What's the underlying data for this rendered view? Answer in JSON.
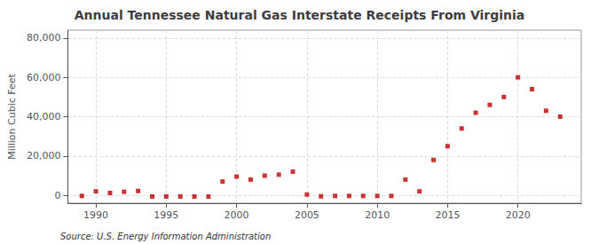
{
  "chart_data": {
    "type": "scatter",
    "title": "Annual Tennessee Natural Gas Interstate Receipts From Virginia",
    "ylabel": "Million Cubic Feet",
    "annotation": "Source: U.S. Energy Information Administration",
    "x": [
      1989,
      1990,
      1991,
      1992,
      1993,
      1994,
      1995,
      1996,
      1997,
      1998,
      1999,
      2000,
      2001,
      2002,
      2003,
      2004,
      2005,
      2006,
      2007,
      2008,
      2009,
      2010,
      2011,
      2012,
      2013,
      2014,
      2015,
      2016,
      2017,
      2018,
      2019,
      2020,
      2021,
      2022,
      2023
    ],
    "values": [
      -300,
      2000,
      1200,
      1800,
      2200,
      -600,
      -600,
      -600,
      -600,
      -600,
      7000,
      9500,
      8000,
      10000,
      10500,
      12000,
      400,
      -500,
      -300,
      -300,
      -300,
      -300,
      -300,
      8000,
      2000,
      18000,
      25000,
      34000,
      42000,
      46000,
      50000,
      60000,
      54000,
      43000,
      40000
    ],
    "color": "#bb0000",
    "marker": "square",
    "xlim": [
      1988.0,
      2024.5
    ],
    "xticks": [
      1990,
      1995,
      2000,
      2005,
      2010,
      2015,
      2020
    ],
    "ylim": [
      -4000,
      84000
    ],
    "yticks": [
      0,
      {
        "value": 20000,
        "label": "20,000"
      },
      {
        "value": 40000,
        "label": "40,000"
      },
      {
        "value": 60000,
        "label": "60,000"
      },
      {
        "value": 80000,
        "label": "80,000"
      }
    ],
    "grid": true
  }
}
